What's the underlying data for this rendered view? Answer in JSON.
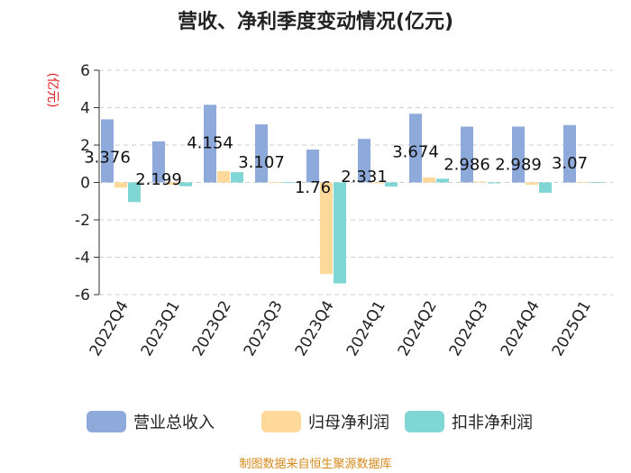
{
  "chart_data": {
    "type": "bar",
    "title": "营收、净利季度变动情况(亿元)",
    "xlabel": "",
    "ylabel": "(亿元)",
    "ylim": [
      -6,
      6
    ],
    "yticks": [
      -6,
      -4,
      -2,
      0,
      2,
      4,
      6
    ],
    "grid": true,
    "legend_position": "bottom",
    "categories": [
      "2022Q4",
      "2023Q1",
      "2023Q2",
      "2023Q3",
      "2023Q4",
      "2024Q1",
      "2024Q2",
      "2024Q3",
      "2024Q4",
      "2025Q1"
    ],
    "series": [
      {
        "name": "营业总收入",
        "color": "#8eaadb",
        "values": [
          3.376,
          2.199,
          4.154,
          3.107,
          1.76,
          2.331,
          3.674,
          2.986,
          2.989,
          3.07
        ],
        "data_labels": [
          "3.376",
          "2.199",
          "4.154",
          "3.107",
          "1.76",
          "2.331",
          "3.674",
          "2.986",
          "2.989",
          "3.07"
        ]
      },
      {
        "name": "归母净利润",
        "color": "#ffd99a",
        "values": [
          -0.28,
          -0.12,
          0.6,
          0.02,
          -4.9,
          -0.05,
          0.27,
          0.05,
          -0.12,
          0.03
        ]
      },
      {
        "name": "扣非净利润",
        "color": "#7fd6d4",
        "values": [
          -1.05,
          -0.2,
          0.55,
          0.01,
          -5.4,
          -0.22,
          0.2,
          -0.05,
          -0.55,
          0.02
        ]
      }
    ],
    "source": "制图数据来自恒生聚源数据库"
  }
}
